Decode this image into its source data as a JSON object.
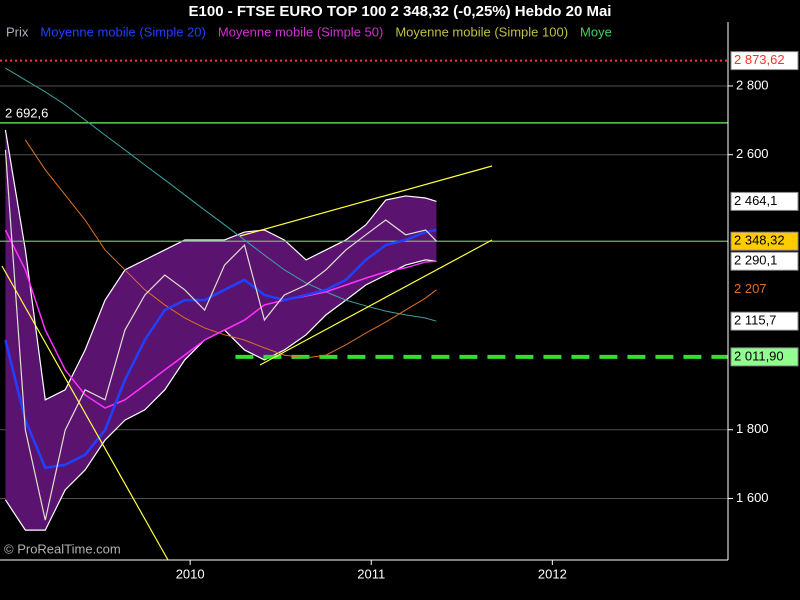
{
  "chart_data": {
    "type": "line",
    "title": "E100 - FTSE EURO TOP 100     2 348,32 (-0,25%)     Hebdo  20 Mai",
    "watermark": "© ProRealTime.com",
    "x": [
      2008.98,
      2009.09,
      2009.2,
      2009.31,
      2009.42,
      2009.53,
      2009.64,
      2009.75,
      2009.86,
      2009.97,
      2010.08,
      2010.19,
      2010.3,
      2010.41,
      2010.52,
      2010.64,
      2010.75,
      2010.86,
      2010.97,
      2011.08,
      2011.19,
      2011.3,
      2011.36
    ],
    "xlim": [
      2008.95,
      2012.97
    ],
    "xticks": [
      2010,
      2011,
      2012
    ],
    "ylim": [
      1421,
      2986
    ],
    "yticks": [
      {
        "value": 1600,
        "label": "1 600"
      },
      {
        "value": 1800,
        "label": "1 800"
      },
      {
        "value": 2600,
        "label": "2 600"
      },
      {
        "value": 2800,
        "label": "2 800"
      }
    ],
    "grid": true,
    "series": [
      {
        "name": "Prix",
        "color": "#e0e0d0",
        "legend_color": "#b0b0c0",
        "width": 1.2,
        "values": [
          2614,
          1799,
          1537,
          1799,
          1916,
          1887,
          2090,
          2192,
          2250,
          2207,
          2148,
          2279,
          2337,
          2119,
          2192,
          2221,
          2265,
          2323,
          2367,
          2410,
          2367,
          2381,
          2348.32
        ]
      },
      {
        "name": "Moyenne mobile (Simple 20)",
        "color": "#2040ff",
        "legend_color": "#2040ff",
        "width": 2.5,
        "values": [
          2061,
          1828,
          1689,
          1698,
          1727,
          1799,
          1945,
          2061,
          2148,
          2177,
          2177,
          2207,
          2236,
          2192,
          2177,
          2192,
          2207,
          2236,
          2294,
          2337,
          2352,
          2375,
          2381
        ]
      },
      {
        "name": "Moyenne mobile (Simple 50)",
        "color": "#ff30ff",
        "legend_color": "#d030d0",
        "width": 1.5,
        "values": [
          2381,
          2265,
          2090,
          1974,
          1901,
          1863,
          1887,
          1930,
          1974,
          2017,
          2061,
          2090,
          2119,
          2163,
          2177,
          2189,
          2201,
          2221,
          2241,
          2259,
          2271,
          2288,
          2290.1
        ]
      },
      {
        "name": "Moyenne mobile (Simple 100)",
        "color": "#e07020",
        "legend_color": "#c0c040",
        "width": 1,
        "values": [
          null,
          2643,
          2556,
          2483,
          2410,
          2323,
          2265,
          2207,
          2163,
          2125,
          2096,
          2076,
          2061,
          2038,
          2017,
          2009,
          2017,
          2047,
          2081,
          2113,
          2148,
          2183,
          2207
        ]
      },
      {
        "name": "Moye",
        "color": "#40a0a0",
        "legend_color": "#40d060",
        "width": 1,
        "values": [
          2852,
          2817,
          2783,
          2745,
          2701,
          2657,
          2614,
          2570,
          2527,
          2483,
          2439,
          2396,
          2352,
          2308,
          2265,
          2227,
          2201,
          2177,
          2160,
          2145,
          2134,
          2125,
          2115.7
        ]
      }
    ],
    "band": {
      "color": "#5a1470",
      "edge_color": "#ffffff",
      "upper": [
        2672,
        2323,
        1887,
        1916,
        2032,
        2177,
        2265,
        2294,
        2323,
        2352,
        2352,
        2352,
        2375,
        2381,
        2352,
        2294,
        2323,
        2352,
        2396,
        2468,
        2480,
        2474,
        2464.1
      ],
      "lower": [
        1596,
        1508,
        1508,
        1625,
        1683,
        1770,
        1828,
        1858,
        1916,
        2003,
        2061,
        2090,
        2032,
        2003,
        2032,
        2076,
        2134,
        2177,
        2221,
        2250,
        2279,
        2294,
        2290.1
      ]
    },
    "levels": [
      {
        "value": 2873.62,
        "color": "#ff3030",
        "style": "dotted",
        "start": 2008.95
      },
      {
        "value": 2692.6,
        "label": "2 692,6",
        "color": "#60ff60",
        "style": "solid",
        "start": 2008.95
      },
      {
        "value": 2348.32,
        "color": "#60c060",
        "style": "solid",
        "start": 2008.95
      },
      {
        "value": 2011.9,
        "color": "#30e030",
        "style": "dashed",
        "start": 2010.25
      }
    ],
    "markers": [
      {
        "value": 2873.62,
        "label": "2 873,62",
        "text_color": "#ff3030",
        "box": "#ffffff"
      },
      {
        "value": 2464.1,
        "label": "2 464,1",
        "text_color": "#000000",
        "box": "#ffffff"
      },
      {
        "value": 2348.32,
        "label": "2 348,32",
        "text_color": "#000000",
        "box": "#ffcc00"
      },
      {
        "value": 2290.1,
        "label": "2 290,1",
        "text_color": "#000000",
        "box": "#ffffff"
      },
      {
        "value": 2207,
        "label": "2 207",
        "text_color": "#e07020",
        "box": "#000000"
      },
      {
        "value": 2115.7,
        "label": "2 115,7",
        "text_color": "#000000",
        "box": "#ffffff"
      },
      {
        "value": 2011.9,
        "label": "2 011,90",
        "text_color": "#000000",
        "box": "#90ff90"
      }
    ]
  }
}
